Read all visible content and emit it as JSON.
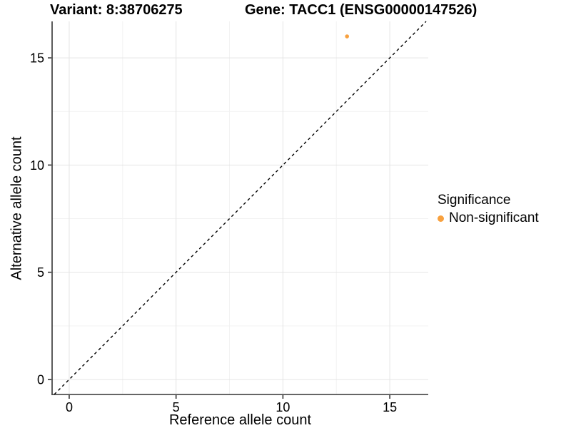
{
  "titles": {
    "variant": "Variant: 8:38706275",
    "gene": "Gene: TACC1 (ENSG00000147526)"
  },
  "chart_data": {
    "type": "scatter",
    "xlabel": "Reference allele count",
    "ylabel": "Alternative allele count",
    "xlim": [
      -0.8,
      16.8
    ],
    "ylim": [
      -0.7,
      16.7
    ],
    "x_ticks": [
      0,
      5,
      10,
      15
    ],
    "y_ticks": [
      0,
      5,
      10,
      15
    ],
    "x_minor_ticks": [
      2.5,
      7.5,
      12.5
    ],
    "y_minor_ticks": [
      2.5,
      7.5,
      12.5
    ],
    "grid": true,
    "points": [
      {
        "x": 13,
        "y": 16,
        "series": "Non-significant",
        "color": "#F8A13F"
      }
    ],
    "identity_line": {
      "note": "y = x",
      "style": "dashed",
      "color": "#000000"
    },
    "legend": {
      "title": "Significance",
      "position": "right",
      "entries": [
        {
          "label": "Non-significant",
          "color": "#F8A13F"
        }
      ]
    },
    "colors": {
      "grid_major": "#E4E4E4",
      "grid_minor": "#F2F2F2",
      "axis_line": "#333333",
      "tick_mark": "#333333",
      "tick_label": "#000000"
    }
  }
}
